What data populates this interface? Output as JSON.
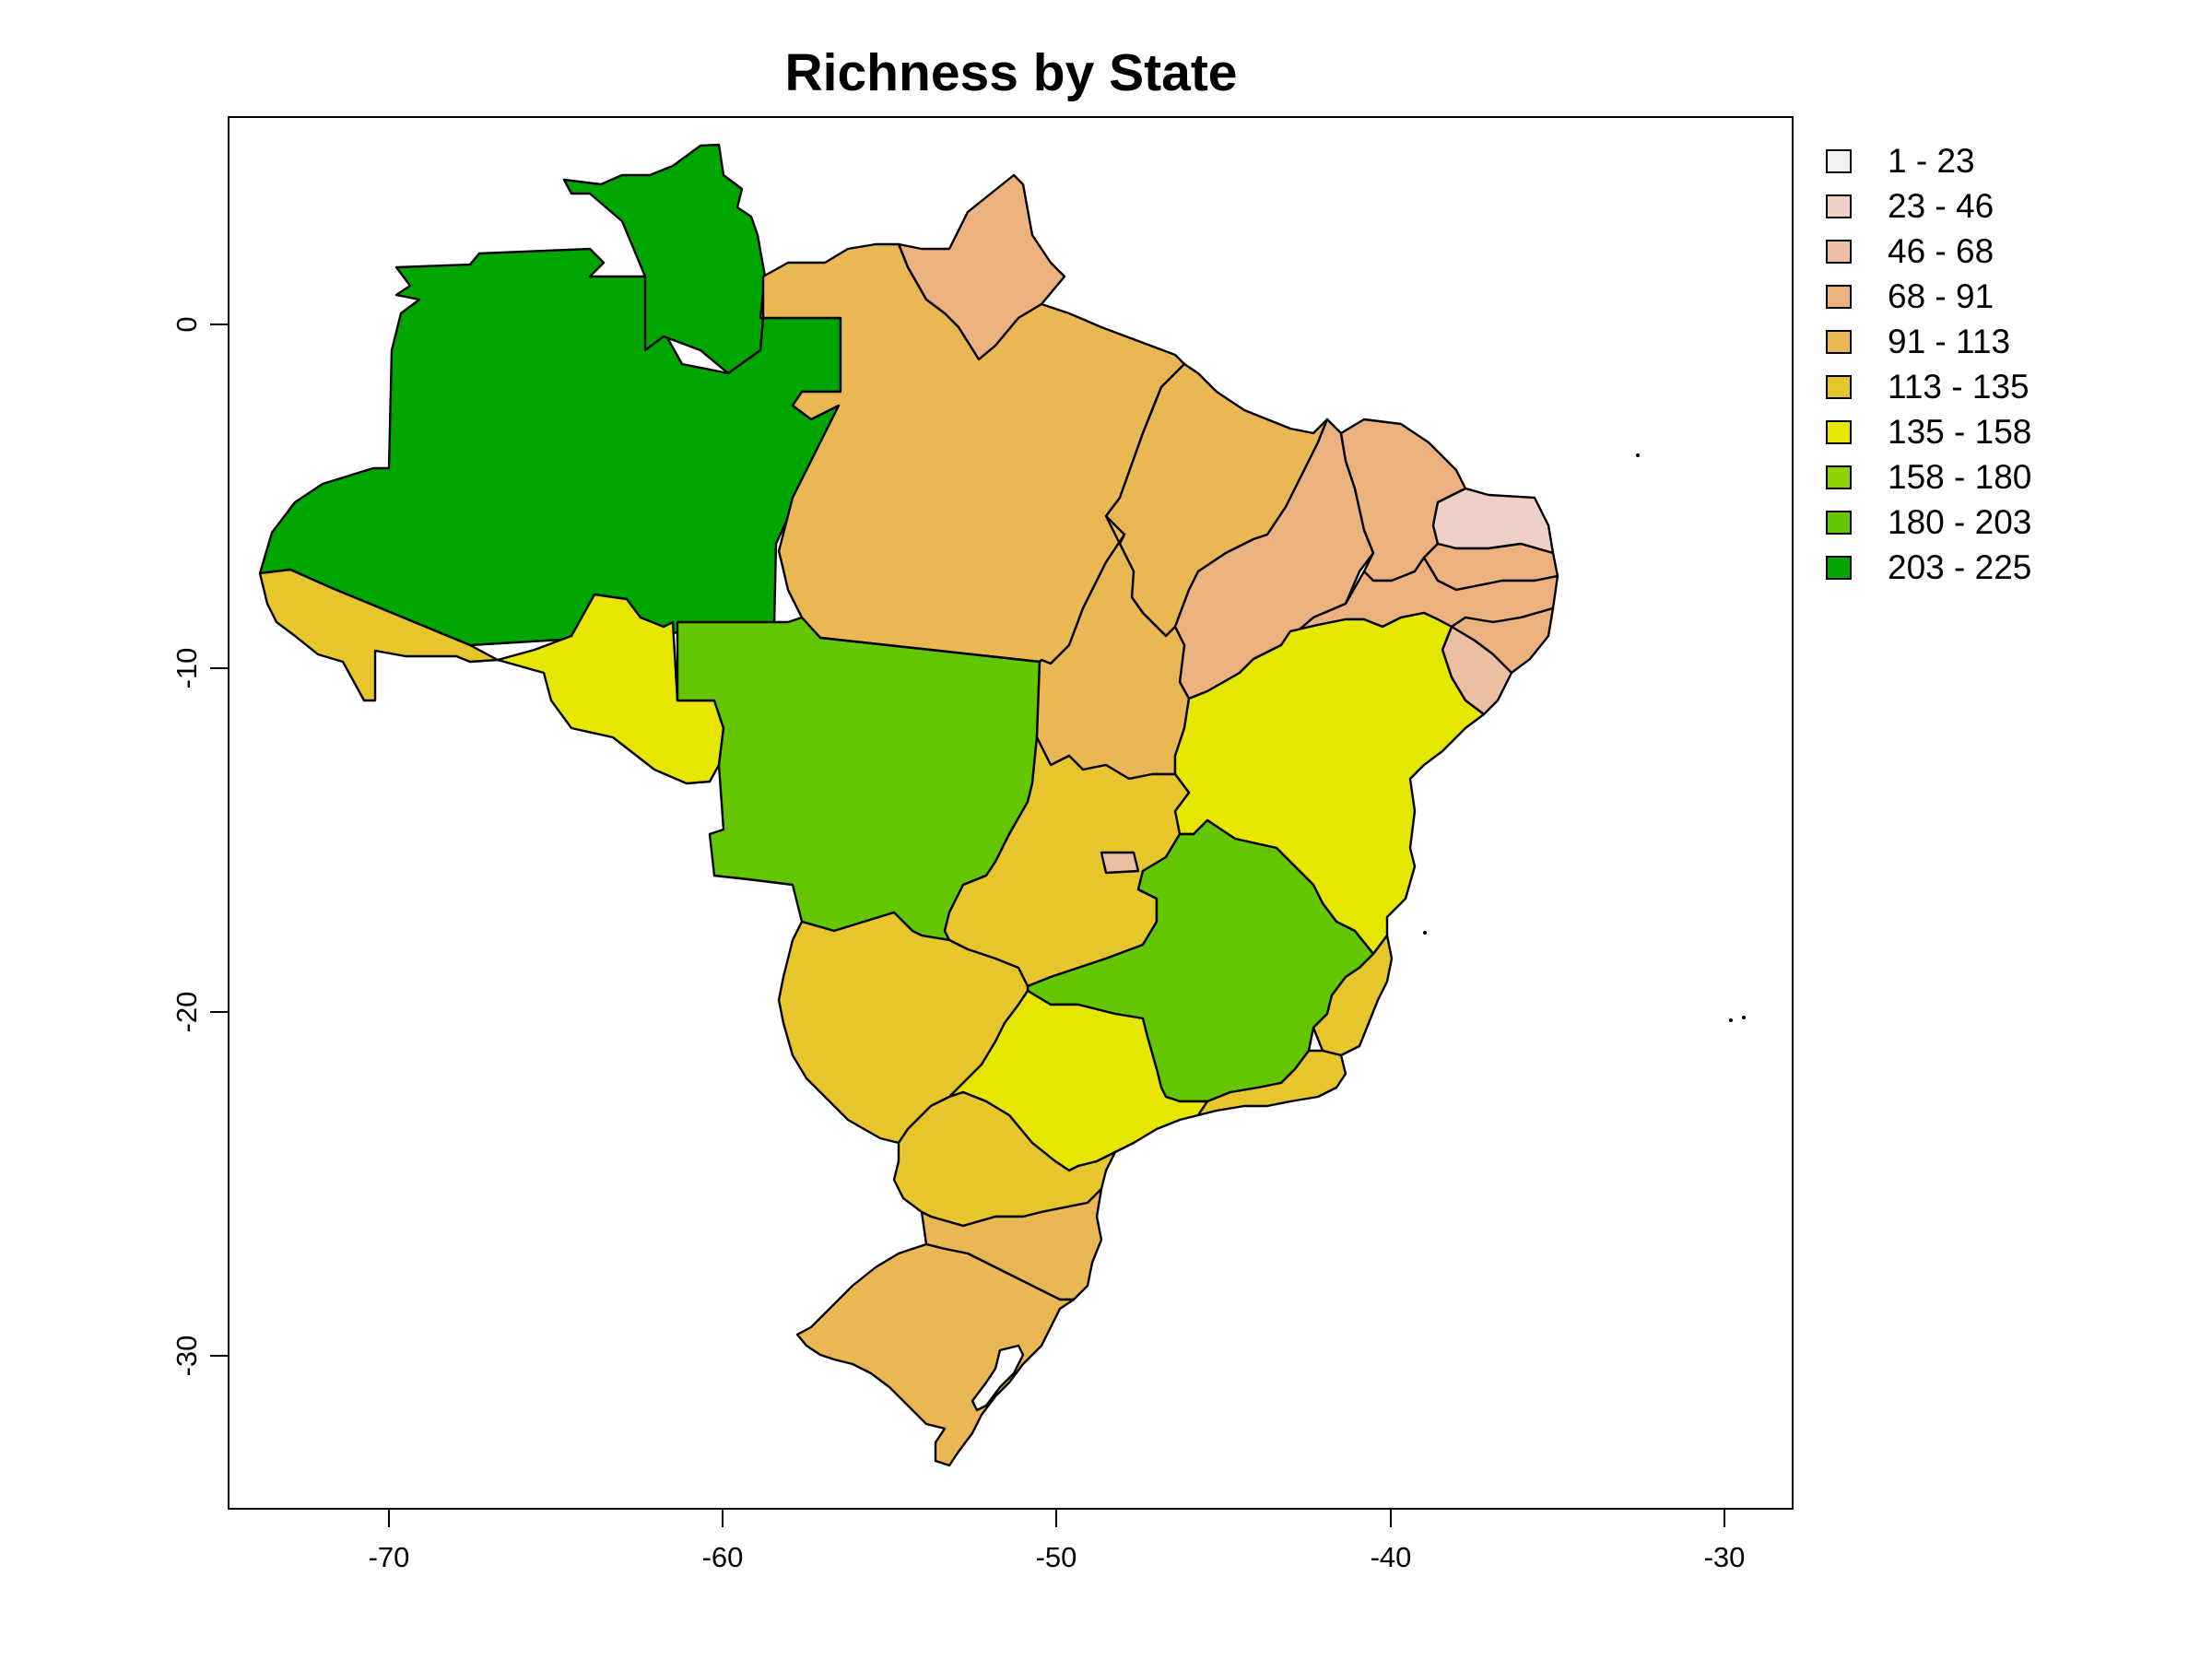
{
  "title": "Richness by State",
  "x_ticks": [
    "-70",
    "-60",
    "-50",
    "-40",
    "-30"
  ],
  "y_ticks": [
    "0",
    "-10",
    "-20",
    "-30"
  ],
  "legend": [
    {
      "label": "1 - 23",
      "color": "#f2f2f2"
    },
    {
      "label": "23 - 46",
      "color": "#efd0c7"
    },
    {
      "label": "46 - 68",
      "color": "#ecbfa3"
    },
    {
      "label": "68 - 91",
      "color": "#ebb17e"
    },
    {
      "label": "91 - 113",
      "color": "#e9b753"
    },
    {
      "label": "113 - 135",
      "color": "#e6c52d"
    },
    {
      "label": "135 - 158",
      "color": "#e6e600"
    },
    {
      "label": "158 - 180",
      "color": "#8fd400"
    },
    {
      "label": "180 - 203",
      "color": "#63c600"
    },
    {
      "label": "203 - 225",
      "color": "#00a600"
    }
  ],
  "states": [
    {
      "name": "Amazonas",
      "color": "#00a600"
    },
    {
      "name": "Pará",
      "color": "#00a600"
    },
    {
      "name": "Roraima",
      "color": "#ebb17e"
    },
    {
      "name": "Amapá",
      "color": "#e9b753"
    },
    {
      "name": "Acre",
      "color": "#e6c52d"
    },
    {
      "name": "Rondônia",
      "color": "#e6e600"
    },
    {
      "name": "Mato Grosso",
      "color": "#63c600"
    },
    {
      "name": "Maranhão",
      "color": "#e9b753"
    },
    {
      "name": "Piauí",
      "color": "#ebb17e"
    },
    {
      "name": "Ceará",
      "color": "#ebb17e"
    },
    {
      "name": "Rio Grande do Norte",
      "color": "#efd0c7"
    },
    {
      "name": "Paraíba",
      "color": "#ebb17e"
    },
    {
      "name": "Pernambuco",
      "color": "#ebb17e"
    },
    {
      "name": "Alagoas",
      "color": "#ebb17e"
    },
    {
      "name": "Sergipe",
      "color": "#ecbfa3"
    },
    {
      "name": "Tocantins",
      "color": "#e9b753"
    },
    {
      "name": "Bahia",
      "color": "#e6e600"
    },
    {
      "name": "Goiás",
      "color": "#e6c52d"
    },
    {
      "name": "Distrito Federal",
      "color": "#ecbfa3"
    },
    {
      "name": "Minas Gerais",
      "color": "#63c600"
    },
    {
      "name": "Espírito Santo",
      "color": "#e6c52d"
    },
    {
      "name": "Mato Grosso do Sul",
      "color": "#e6c52d"
    },
    {
      "name": "São Paulo",
      "color": "#e6e600"
    },
    {
      "name": "Rio de Janeiro",
      "color": "#e6c52d"
    },
    {
      "name": "Paraná",
      "color": "#e6c52d"
    },
    {
      "name": "Santa Catarina",
      "color": "#e9b753"
    },
    {
      "name": "Rio Grande do Sul",
      "color": "#e9b753"
    },
    {
      "name": "Lagoa dos Patos",
      "color": "#ffffff"
    }
  ]
}
